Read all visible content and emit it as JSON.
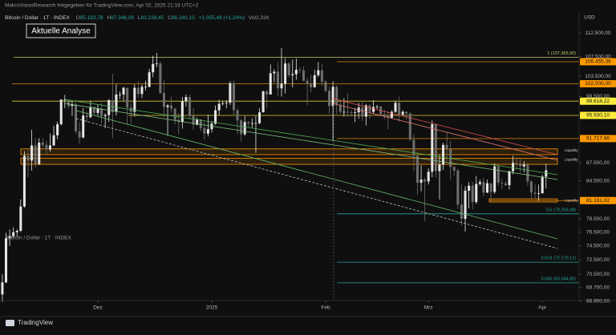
{
  "header": {
    "author": "MakroVisionResearch freigegeben für TradingView.com, Apr 02, 2025 21:19 UTC+2",
    "symbol": "Bitcoin / Dollar · 1T · INDEX",
    "ohlc": [
      {
        "key": "O",
        "value": "85.183,78"
      },
      {
        "key": "H",
        "value": "87.346,08"
      },
      {
        "key": "L",
        "value": "83.238,45"
      },
      {
        "key": "C",
        "value": "86.240,10"
      }
    ],
    "change": "+1.055,48 (+1,24%)",
    "vol_key": "Vol",
    "vol": "2,31K",
    "currency": "USD",
    "note": "Aktuelle Analyse",
    "brand": "TradingView"
  },
  "chart_data": {
    "type": "candlestick",
    "log_scale": true,
    "grid": false,
    "up_color": "#e6e6e6",
    "down_color": "#6e6e6e",
    "ylim": [
      67000,
      117400
    ],
    "xlim": [
      -0.64,
      157
    ],
    "yticks": [
      {
        "value": 112500,
        "label": "112.500,00"
      },
      {
        "value": 107500,
        "label": "107.500,00"
      },
      {
        "value": 103500,
        "label": "103.500,00"
      },
      {
        "value": 99500,
        "label": "99.500,00"
      },
      {
        "value": 87500,
        "label": "87.500,00"
      },
      {
        "value": 84500,
        "label": "84.500,00"
      },
      {
        "value": 78500,
        "label": "78.500,00"
      },
      {
        "value": 76500,
        "label": "76.500,00"
      },
      {
        "value": 74500,
        "label": "74.500,00"
      },
      {
        "value": 72500,
        "label": "72.500,00"
      },
      {
        "value": 70500,
        "label": "70.500,00"
      },
      {
        "value": 68700,
        "label": "68.700,00"
      },
      {
        "value": 66900,
        "label": "66.900,00"
      }
    ],
    "xticks": [
      {
        "value": 26,
        "label": "Dez"
      },
      {
        "value": 57,
        "label": "2025"
      },
      {
        "value": 88,
        "label": "Feb"
      },
      {
        "value": 116,
        "label": "Mrz"
      },
      {
        "value": 147,
        "label": "Apr"
      }
    ],
    "levels": [
      {
        "value": 106455.36,
        "label": "106.455,36",
        "color": "#ff9800"
      },
      {
        "value": 102000.0,
        "label": "102.000,00",
        "color": "#ff9800"
      },
      {
        "value": 98618.22,
        "label": "98.618,22",
        "color": "#ffeb3b"
      },
      {
        "value": 95930.1,
        "label": "95.930,10",
        "color": "#ffeb3b"
      },
      {
        "value": 91717.96,
        "label": "91.717,96",
        "color": "#ff9800"
      },
      {
        "value": 81331.02,
        "label": "81.331,02",
        "color": "#ff9800"
      }
    ],
    "fib_levels": [
      {
        "value": 107365.9,
        "label": "1 (107.365,90)",
        "color": "#c8c86e"
      },
      {
        "value": 79263.48,
        "label": "0.5 (79.263,48)",
        "color": "#26a69a"
      },
      {
        "value": 72170.12,
        "label": "0.618 (72.170,12)",
        "color": "#26a69a"
      },
      {
        "value": 69344.8,
        "label": "0.665 (69.344,80)",
        "color": "#26a69a"
      }
    ],
    "zones": [
      {
        "label": "Liquidity",
        "high": 89900,
        "low": 88900,
        "color": "#ff9800"
      },
      {
        "label": "Liquidity",
        "high": 88300,
        "low": 87250,
        "color": "#ff9800"
      },
      {
        "label": "Liquidity",
        "high": 81600,
        "low": 81100,
        "color": "#ff9800"
      }
    ],
    "candles": [
      [
        67800,
        70500,
        66800,
        69400
      ],
      [
        69400,
        76400,
        69300,
        75600
      ],
      [
        75600,
        76900,
        74500,
        75900
      ],
      [
        75900,
        77200,
        75600,
        76500
      ],
      [
        76500,
        76900,
        75800,
        76700
      ],
      [
        76700,
        81500,
        76500,
        80400
      ],
      [
        80400,
        89500,
        80200,
        88700
      ],
      [
        88700,
        89900,
        85100,
        87900
      ],
      [
        87900,
        93300,
        86200,
        90500
      ],
      [
        90500,
        91800,
        86700,
        87300
      ],
      [
        87300,
        91800,
        87100,
        91000
      ],
      [
        91000,
        91800,
        90100,
        90600
      ],
      [
        90600,
        91400,
        88900,
        89800
      ],
      [
        89800,
        92600,
        89400,
        90500
      ],
      [
        90500,
        94000,
        90400,
        92300
      ],
      [
        92300,
        94800,
        91600,
        94300
      ],
      [
        94300,
        99000,
        94100,
        98900
      ],
      [
        98900,
        99800,
        97300,
        98900
      ],
      [
        98900,
        98900,
        97200,
        97700
      ],
      [
        97700,
        98600,
        95800,
        98000
      ],
      [
        98000,
        98900,
        92600,
        93000
      ],
      [
        93000,
        94700,
        90800,
        91900
      ],
      [
        91900,
        97300,
        91800,
        95900
      ],
      [
        95900,
        96600,
        94700,
        95600
      ],
      [
        95600,
        98700,
        95400,
        97500
      ],
      [
        97500,
        97500,
        96100,
        96400
      ],
      [
        96400,
        97900,
        95800,
        97200
      ],
      [
        97200,
        98200,
        94400,
        95800
      ],
      [
        95800,
        96300,
        93600,
        96000
      ],
      [
        96000,
        99000,
        94700,
        98800
      ],
      [
        98800,
        104000,
        91800,
        96600
      ],
      [
        96600,
        101900,
        95900,
        99900
      ],
      [
        99900,
        100500,
        99000,
        99900
      ],
      [
        99900,
        101400,
        98700,
        101200
      ],
      [
        101200,
        101200,
        94200,
        97400
      ],
      [
        97400,
        98200,
        94300,
        96600
      ],
      [
        96600,
        101900,
        95700,
        101200
      ],
      [
        101200,
        102500,
        99300,
        100000
      ],
      [
        100000,
        101900,
        99200,
        101400
      ],
      [
        101400,
        102600,
        100700,
        101400
      ],
      [
        101400,
        105000,
        101300,
        104300
      ],
      [
        104300,
        107700,
        103300,
        106000
      ],
      [
        106000,
        108300,
        105300,
        106100
      ],
      [
        106100,
        106500,
        100000,
        100200
      ],
      [
        100200,
        102700,
        95600,
        97500
      ],
      [
        97500,
        98100,
        92200,
        97800
      ],
      [
        97800,
        99500,
        96500,
        97200
      ],
      [
        97200,
        97400,
        94300,
        95100
      ],
      [
        95100,
        96400,
        92500,
        94700
      ],
      [
        94700,
        99400,
        93500,
        98600
      ],
      [
        98600,
        99900,
        97600,
        99400
      ],
      [
        99400,
        99900,
        95200,
        95800
      ],
      [
        95800,
        97300,
        93300,
        94200
      ],
      [
        94200,
        95500,
        94100,
        95200
      ],
      [
        95200,
        95200,
        93000,
        93600
      ],
      [
        93600,
        94900,
        91500,
        92600
      ],
      [
        92600,
        96100,
        92100,
        93400
      ],
      [
        93400,
        94900,
        92800,
        94400
      ],
      [
        94400,
        97800,
        94200,
        96900
      ],
      [
        96900,
        98900,
        96000,
        98100
      ],
      [
        98100,
        98700,
        97800,
        98200
      ],
      [
        98200,
        98800,
        97300,
        98300
      ],
      [
        98300,
        102500,
        97900,
        102100
      ],
      [
        102100,
        102700,
        96100,
        96900
      ],
      [
        96900,
        97200,
        92500,
        95000
      ],
      [
        95000,
        95300,
        91200,
        92500
      ],
      [
        92500,
        95800,
        92200,
        94700
      ],
      [
        94700,
        94900,
        93800,
        94500
      ],
      [
        94500,
        95400,
        93700,
        94500
      ],
      [
        94500,
        95800,
        89200,
        94500
      ],
      [
        94500,
        97300,
        94300,
        96500
      ],
      [
        96500,
        100700,
        96500,
        100500
      ],
      [
        100500,
        100800,
        97300,
        99900
      ],
      [
        99900,
        105900,
        99900,
        104100
      ],
      [
        104100,
        104900,
        102300,
        104400
      ],
      [
        104400,
        106300,
        99500,
        101100
      ],
      [
        101100,
        109300,
        99500,
        102000
      ],
      [
        102000,
        107200,
        100100,
        106100
      ],
      [
        106100,
        106400,
        103300,
        103700
      ],
      [
        103700,
        106900,
        101300,
        103900
      ],
      [
        103900,
        107100,
        102800,
        104800
      ],
      [
        104800,
        105300,
        104100,
        104700
      ],
      [
        104700,
        105500,
        102500,
        102600
      ],
      [
        102600,
        103200,
        97800,
        102000
      ],
      [
        102000,
        103800,
        100300,
        101300
      ],
      [
        101300,
        104800,
        101300,
        103700
      ],
      [
        103700,
        106400,
        103300,
        104700
      ],
      [
        104700,
        106000,
        101600,
        102400
      ],
      [
        102400,
        102800,
        100300,
        100600
      ],
      [
        100600,
        101500,
        96200,
        97700
      ],
      [
        97700,
        102500,
        91200,
        101400
      ],
      [
        101400,
        101700,
        96200,
        97900
      ],
      [
        97900,
        99000,
        96200,
        96600
      ],
      [
        96600,
        99200,
        95700,
        96600
      ],
      [
        96600,
        100100,
        95700,
        96500
      ],
      [
        96500,
        96900,
        95700,
        96400
      ],
      [
        96400,
        97300,
        94700,
        96500
      ],
      [
        96500,
        98300,
        95300,
        97400
      ],
      [
        97400,
        98500,
        94900,
        95700
      ],
      [
        95700,
        98100,
        94100,
        97800
      ],
      [
        97800,
        98000,
        95300,
        96600
      ],
      [
        96600,
        98800,
        96300,
        97500
      ],
      [
        97500,
        97900,
        97100,
        97600
      ],
      [
        97600,
        97700,
        96000,
        96100
      ],
      [
        96100,
        97000,
        95200,
        95800
      ],
      [
        95800,
        96700,
        93400,
        95500
      ],
      [
        95500,
        96900,
        95400,
        96600
      ],
      [
        96600,
        98700,
        96400,
        98300
      ],
      [
        98300,
        99500,
        94800,
        96100
      ],
      [
        96100,
        96900,
        95800,
        96600
      ],
      [
        96600,
        96700,
        95200,
        96300
      ],
      [
        96300,
        96500,
        91300,
        91500
      ],
      [
        91500,
        92500,
        86100,
        88700
      ],
      [
        88700,
        89300,
        82300,
        84200
      ],
      [
        84200,
        87100,
        82800,
        84700
      ],
      [
        84700,
        85000,
        78200,
        84400
      ],
      [
        84400,
        86600,
        83900,
        86000
      ],
      [
        86000,
        95000,
        85100,
        94300
      ],
      [
        94300,
        94400,
        85000,
        86100
      ],
      [
        86100,
        88900,
        81500,
        87200
      ],
      [
        87200,
        91000,
        86300,
        90600
      ],
      [
        90600,
        92800,
        87800,
        89900
      ],
      [
        89900,
        91300,
        84700,
        86800
      ],
      [
        86800,
        86900,
        85300,
        86200
      ],
      [
        86200,
        86500,
        80000,
        80700
      ],
      [
        80700,
        84000,
        77500,
        78500
      ],
      [
        78500,
        83600,
        76600,
        82900
      ],
      [
        82900,
        84300,
        80100,
        83700
      ],
      [
        83700,
        84300,
        79900,
        81100
      ],
      [
        81100,
        85300,
        80800,
        84000
      ],
      [
        84000,
        84700,
        83700,
        84300
      ],
      [
        84300,
        85000,
        82000,
        82600
      ],
      [
        82600,
        84700,
        82500,
        84100
      ],
      [
        84100,
        84100,
        81200,
        82700
      ],
      [
        82700,
        87400,
        82400,
        86900
      ],
      [
        86900,
        87400,
        83700,
        84200
      ],
      [
        84200,
        84800,
        83200,
        84100
      ],
      [
        84100,
        84500,
        83700,
        83800
      ],
      [
        83800,
        86200,
        83100,
        86100
      ],
      [
        86100,
        88700,
        85600,
        87500
      ],
      [
        87500,
        88500,
        86400,
        87400
      ],
      [
        87400,
        88200,
        85900,
        86900
      ],
      [
        86900,
        87800,
        85900,
        87200
      ],
      [
        87200,
        87500,
        83700,
        84400
      ],
      [
        84400,
        84600,
        81700,
        82600
      ],
      [
        82600,
        83900,
        81600,
        82400
      ],
      [
        82400,
        83900,
        81300,
        82500
      ],
      [
        82500,
        85500,
        82400,
        85200
      ],
      [
        85183.78,
        87346.08,
        83238.45,
        86240.1
      ]
    ]
  }
}
